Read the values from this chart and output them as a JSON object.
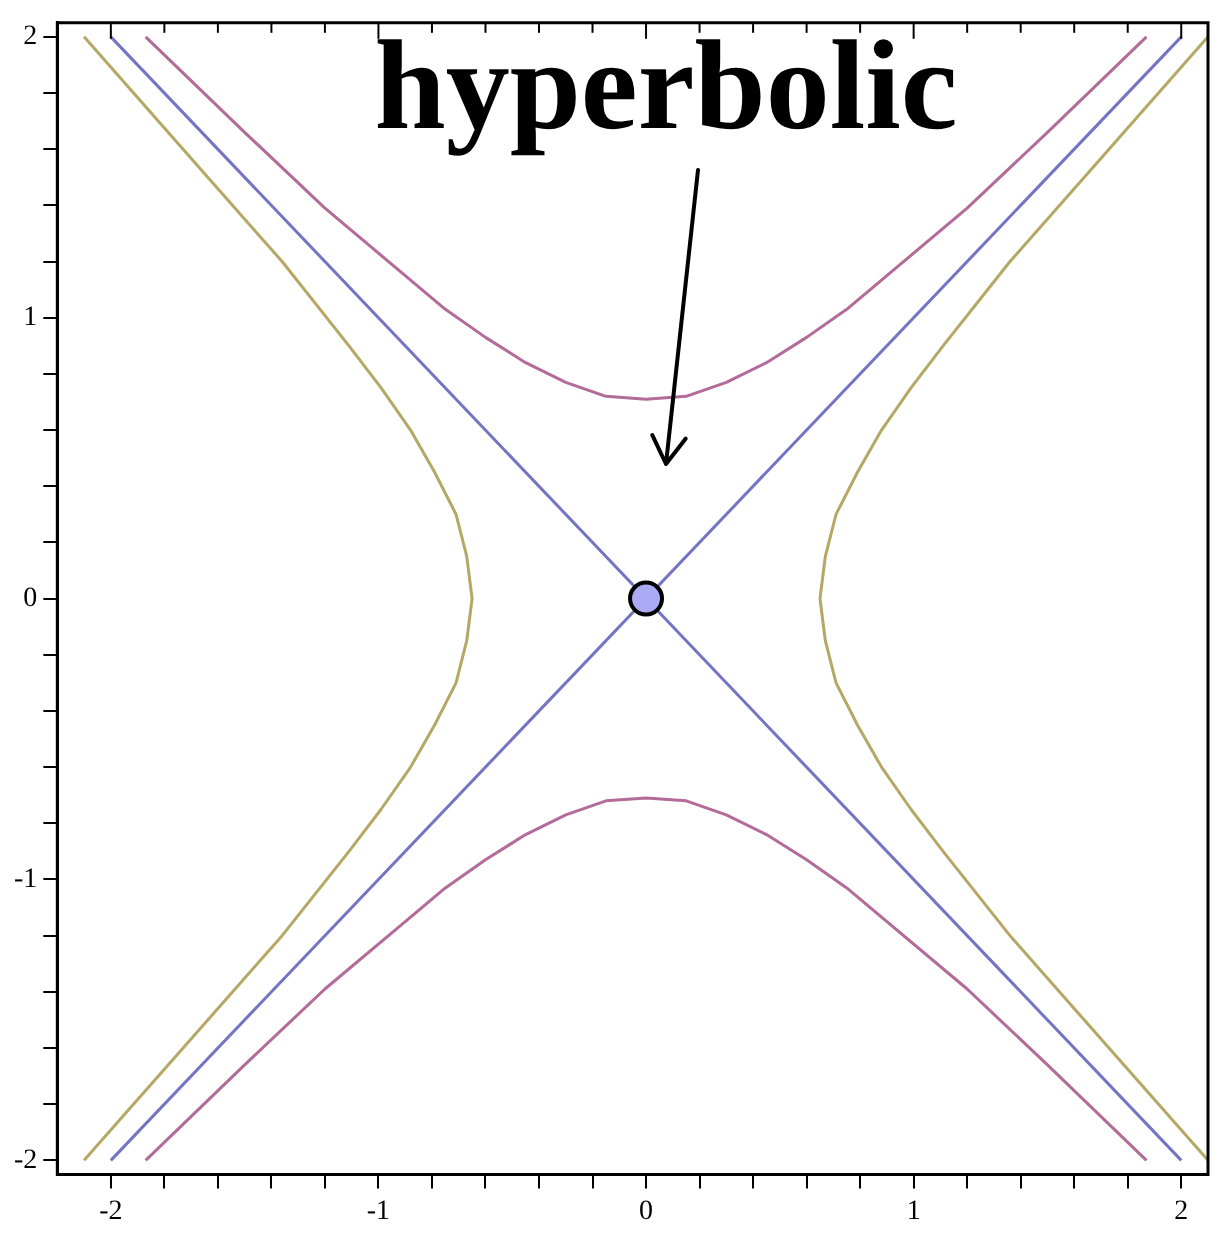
{
  "chart_data": {
    "type": "line",
    "legend": false,
    "grid": false,
    "xlim": [
      -2.2,
      2.1
    ],
    "ylim": [
      -2.05,
      2.05
    ],
    "xticks": [
      -2,
      {
        "value": -1.8,
        "label": null
      },
      {
        "value": -1.6,
        "label": null
      },
      {
        "value": -1.4,
        "label": null
      },
      {
        "value": -1.2,
        "label": null
      },
      -1,
      {
        "value": -0.8,
        "label": null
      },
      {
        "value": -0.6,
        "label": null
      },
      {
        "value": -0.4,
        "label": null
      },
      {
        "value": -0.2,
        "label": null
      },
      0,
      {
        "value": 0.2,
        "label": null
      },
      {
        "value": 0.4,
        "label": null
      },
      {
        "value": 0.6,
        "label": null
      },
      {
        "value": 0.8,
        "label": null
      },
      1,
      {
        "value": 1.2,
        "label": null
      },
      {
        "value": 1.4,
        "label": null
      },
      {
        "value": 1.6,
        "label": null
      },
      {
        "value": 1.8,
        "label": null
      },
      2
    ],
    "yticks": [
      -2,
      {
        "value": -1.8,
        "label": null
      },
      {
        "value": -1.6,
        "label": null
      },
      {
        "value": -1.4,
        "label": null
      },
      {
        "value": -1.2,
        "label": null
      },
      -1,
      {
        "value": -0.8,
        "label": null
      },
      {
        "value": -0.6,
        "label": null
      },
      {
        "value": -0.4,
        "label": null
      },
      {
        "value": -0.2,
        "label": null
      },
      0,
      {
        "value": 0.2,
        "label": null
      },
      {
        "value": 0.4,
        "label": null
      },
      {
        "value": 0.6,
        "label": null
      },
      {
        "value": 0.8,
        "label": null
      },
      1,
      {
        "value": 1.2,
        "label": null
      },
      {
        "value": 1.4,
        "label": null
      },
      {
        "value": 1.6,
        "label": null
      },
      {
        "value": 1.8,
        "label": null
      },
      2
    ],
    "annotations": [
      "hyperbolic"
    ],
    "series": [
      {
        "color": "#b36b98",
        "x": [
          -1.87,
          -1.5,
          -1.2,
          -0.9,
          -0.75,
          -0.6,
          -0.45,
          -0.3,
          -0.15,
          0,
          0.15,
          0.3,
          0.45,
          0.6,
          0.75,
          0.9,
          1.2,
          1.5,
          1.87
        ],
        "values": [
          2.0,
          1.66,
          1.39,
          1.15,
          1.03,
          0.93,
          0.84,
          0.77,
          0.72,
          0.71,
          0.72,
          0.77,
          0.84,
          0.93,
          1.03,
          1.15,
          1.39,
          1.66,
          2.0
        ]
      },
      {
        "color": "#b36b98",
        "x": [
          -1.87,
          -1.5,
          -1.2,
          -0.9,
          -0.75,
          -0.6,
          -0.45,
          -0.3,
          -0.15,
          0,
          0.15,
          0.3,
          0.45,
          0.6,
          0.75,
          0.9,
          1.2,
          1.5,
          1.87
        ],
        "values": [
          -2.0,
          -1.66,
          -1.39,
          -1.15,
          -1.03,
          -0.93,
          -0.84,
          -0.77,
          -0.72,
          -0.71,
          -0.72,
          -0.77,
          -0.84,
          -0.93,
          -1.03,
          -1.15,
          -1.39,
          -1.66,
          -2.0
        ]
      },
      {
        "color": "#b5a865",
        "x": [
          2.1,
          1.73,
          1.36,
          1.11,
          0.99,
          0.88,
          0.79,
          0.71,
          0.67,
          0.65,
          0.67,
          0.71,
          0.79,
          0.88,
          0.99,
          1.11,
          1.36,
          1.73,
          2.1
        ],
        "values": [
          -2.0,
          -1.6,
          -1.2,
          -0.9,
          -0.75,
          -0.6,
          -0.45,
          -0.3,
          -0.15,
          0,
          0.15,
          0.3,
          0.45,
          0.6,
          0.75,
          0.9,
          1.2,
          1.6,
          2.0
        ]
      },
      {
        "color": "#b5a865",
        "x": [
          -2.1,
          -1.73,
          -1.36,
          -1.11,
          -0.99,
          -0.88,
          -0.79,
          -0.71,
          -0.67,
          -0.65,
          -0.67,
          -0.71,
          -0.79,
          -0.88,
          -0.99,
          -1.11,
          -1.36,
          -1.73,
          -2.1
        ],
        "values": [
          -2.0,
          -1.6,
          -1.2,
          -0.9,
          -0.75,
          -0.6,
          -0.45,
          -0.3,
          -0.15,
          0,
          0.15,
          0.3,
          0.45,
          0.6,
          0.75,
          0.9,
          1.2,
          1.6,
          2.0
        ]
      },
      {
        "color": "#7474c4",
        "x": [
          -2,
          2
        ],
        "values": [
          -2,
          2
        ]
      },
      {
        "color": "#7474c4",
        "x": [
          -2,
          2
        ],
        "values": [
          2,
          -2
        ]
      },
      {
        "type": "scatter",
        "marker": "circle",
        "color": "#aaaaf5",
        "x": [
          0
        ],
        "values": [
          0
        ]
      }
    ]
  }
}
